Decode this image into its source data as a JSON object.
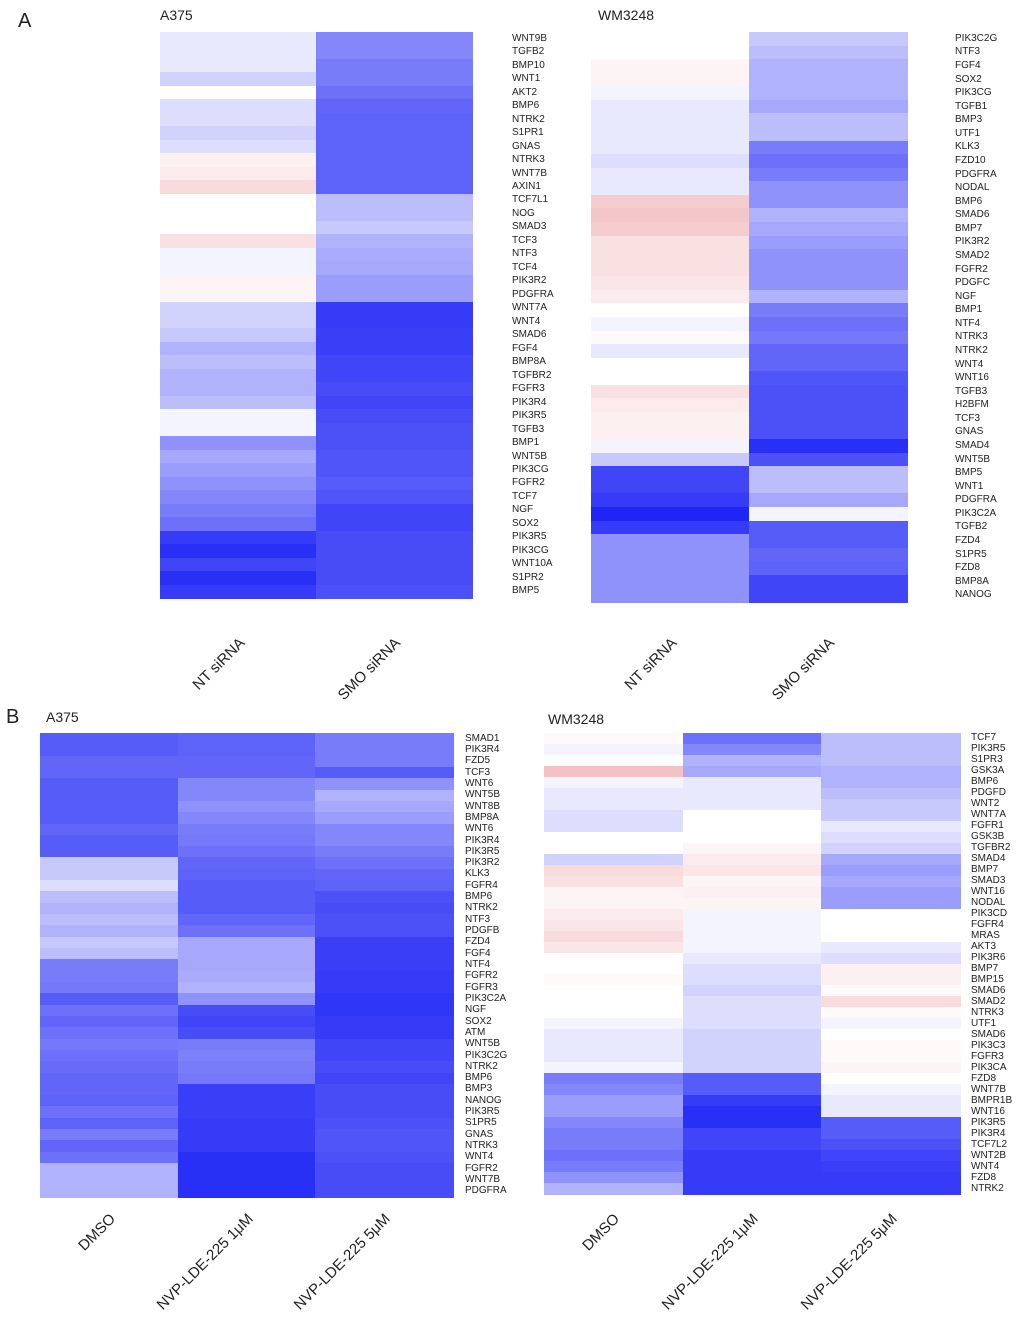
{
  "panels": [
    {
      "letter": "A"
    },
    {
      "letter": "B"
    }
  ],
  "colors": {
    "low": "#1e25f5",
    "mid": "#ffffff",
    "high": "#ea9a9e"
  },
  "chart_data": [
    {
      "type": "heatmap",
      "panel": "A",
      "title": "A375",
      "columns": [
        "NT siRNA",
        "SMO siRNA"
      ],
      "genes": [
        "WNT9B",
        "TGFB2",
        "BMP10",
        "WNT1",
        "AKT2",
        "BMP6",
        "NTRK2",
        "S1PR1",
        "GNAS",
        "NTRK3",
        "WNT7B",
        "AXIN1",
        "TCF7L1",
        "NOG",
        "SMAD3",
        "TCF3",
        "NTF3",
        "TCF4",
        "PIK3R2",
        "PDGFRA",
        "WNT7A",
        "WNT4",
        "SMAD6",
        "FGF4",
        "BMP8A",
        "TGFBR2",
        "FGFR3",
        "PIK3R4",
        "PIK3R5",
        "TGFB3",
        "BMP1",
        "WNT5B",
        "PIK3CG",
        "FGFR2",
        "TCF7",
        "NGF",
        "SOX2",
        "PIK3R5",
        "PIK3CG",
        "WNT10A",
        "S1PR2",
        "BMP5"
      ],
      "values": [
        [
          -0.1,
          -0.55
        ],
        [
          -0.1,
          -0.55
        ],
        [
          -0.1,
          -0.6
        ],
        [
          -0.2,
          -0.6
        ],
        [
          0,
          -0.65
        ],
        [
          -0.15,
          -0.7
        ],
        [
          -0.15,
          -0.72
        ],
        [
          -0.2,
          -0.72
        ],
        [
          -0.15,
          -0.72
        ],
        [
          0.15,
          -0.72
        ],
        [
          0.2,
          -0.72
        ],
        [
          0.35,
          -0.72
        ],
        [
          0,
          -0.3
        ],
        [
          0,
          -0.3
        ],
        [
          0,
          -0.25
        ],
        [
          0.3,
          -0.35
        ],
        [
          -0.05,
          -0.38
        ],
        [
          -0.05,
          -0.4
        ],
        [
          0.1,
          -0.45
        ],
        [
          0.1,
          -0.45
        ],
        [
          -0.2,
          -0.9
        ],
        [
          -0.2,
          -0.9
        ],
        [
          -0.25,
          -0.88
        ],
        [
          -0.35,
          -0.88
        ],
        [
          -0.3,
          -0.85
        ],
        [
          -0.35,
          -0.85
        ],
        [
          -0.35,
          -0.82
        ],
        [
          -0.3,
          -0.85
        ],
        [
          -0.05,
          -0.82
        ],
        [
          -0.05,
          -0.8
        ],
        [
          -0.5,
          -0.8
        ],
        [
          -0.4,
          -0.78
        ],
        [
          -0.45,
          -0.78
        ],
        [
          -0.5,
          -0.75
        ],
        [
          -0.55,
          -0.78
        ],
        [
          -0.6,
          -0.85
        ],
        [
          -0.65,
          -0.85
        ],
        [
          -0.9,
          -0.82
        ],
        [
          -0.95,
          -0.82
        ],
        [
          -0.85,
          -0.82
        ],
        [
          -0.95,
          -0.82
        ],
        [
          -0.9,
          -0.8
        ]
      ]
    },
    {
      "type": "heatmap",
      "panel": "A",
      "title": "WM3248",
      "columns": [
        "NT siRNA",
        "SMO siRNA"
      ],
      "genes": [
        "PIK3C2G",
        "NTF3",
        "FGF4",
        "SOX2",
        "PIK3CG",
        "TGFB1",
        "BMP3",
        "UTF1",
        "KLK3",
        "FZD10",
        "PDGFRA",
        "NODAL",
        "BMP6",
        "SMAD6",
        "BMP7",
        "PIK3R2",
        "SMAD2",
        "FGFR2",
        "PDGFC",
        "NGF",
        "BMP1",
        "NTF4",
        "NTRK3",
        "NTRK2",
        "WNT4",
        "WNT16",
        "TGFB3",
        "H2BFM",
        "TCF3",
        "GNAS",
        "SMAD4",
        "WNT5B",
        "BMP5",
        "WNT1",
        "PDGFRA",
        "PIK3C2A",
        "TGFB2",
        "FZD4",
        "S1PR5",
        "FZD8",
        "BMP8A",
        "NANOG"
      ],
      "values": [
        [
          0,
          -0.25
        ],
        [
          0,
          -0.3
        ],
        [
          0.1,
          -0.35
        ],
        [
          0.1,
          -0.35
        ],
        [
          -0.05,
          -0.35
        ],
        [
          -0.1,
          -0.4
        ],
        [
          -0.1,
          -0.3
        ],
        [
          -0.1,
          -0.3
        ],
        [
          -0.1,
          -0.6
        ],
        [
          -0.15,
          -0.65
        ],
        [
          -0.1,
          -0.6
        ],
        [
          -0.1,
          -0.5
        ],
        [
          0.5,
          -0.5
        ],
        [
          0.55,
          -0.35
        ],
        [
          0.5,
          -0.4
        ],
        [
          0.3,
          -0.45
        ],
        [
          0.3,
          -0.5
        ],
        [
          0.3,
          -0.5
        ],
        [
          0.25,
          -0.5
        ],
        [
          0.2,
          -0.35
        ],
        [
          0,
          -0.6
        ],
        [
          -0.05,
          -0.65
        ],
        [
          0.05,
          -0.62
        ],
        [
          -0.1,
          -0.7
        ],
        [
          0,
          -0.7
        ],
        [
          0,
          -0.78
        ],
        [
          0.3,
          -0.8
        ],
        [
          0.2,
          -0.8
        ],
        [
          0.15,
          -0.8
        ],
        [
          0.15,
          -0.8
        ],
        [
          -0.05,
          -0.95
        ],
        [
          -0.25,
          -0.8
        ],
        [
          -0.85,
          -0.3
        ],
        [
          -0.85,
          -0.3
        ],
        [
          -0.9,
          -0.4
        ],
        [
          -1,
          -0.05
        ],
        [
          -0.9,
          -0.75
        ],
        [
          -0.5,
          -0.75
        ],
        [
          -0.5,
          -0.7
        ],
        [
          -0.5,
          -0.72
        ],
        [
          -0.5,
          -0.85
        ],
        [
          -0.5,
          -0.85
        ]
      ]
    },
    {
      "type": "heatmap",
      "panel": "B",
      "title": "A375",
      "columns": [
        "DMSO",
        "NVP-LDE-225 1μM",
        "NVP-LDE-225 5μM"
      ],
      "genes": [
        "SMAD1",
        "PIK3R4",
        "FZD5",
        "TCF3",
        "WNT6",
        "WNT5B",
        "WNT8B",
        "BMP8A",
        "WNT6",
        "PIK3R4",
        "PIK3R5",
        "PIK3R2",
        "KLK3",
        "FGFR4",
        "BMP6",
        "NTRK2",
        "NTF3",
        "PDGFB",
        "FZD4",
        "FGF4",
        "NTF4",
        "FGFR2",
        "FGFR3",
        "PIK3C2A",
        "NGF",
        "SOX2",
        "ATM",
        "WNT5B",
        "PIK3C2G",
        "NTRK2",
        "BMP6",
        "BMP3",
        "NANOG",
        "PIK3R5",
        "S1PR5",
        "GNAS",
        "NTRK3",
        "WNT4",
        "FGFR2",
        "WNT7B",
        "PDGFRA"
      ],
      "values": [
        [
          -0.75,
          -0.72,
          -0.6
        ],
        [
          -0.75,
          -0.72,
          -0.6
        ],
        [
          -0.7,
          -0.7,
          -0.6
        ],
        [
          -0.7,
          -0.7,
          -0.75
        ],
        [
          -0.75,
          -0.55,
          -0.5
        ],
        [
          -0.75,
          -0.55,
          -0.35
        ],
        [
          -0.75,
          -0.5,
          -0.4
        ],
        [
          -0.75,
          -0.55,
          -0.45
        ],
        [
          -0.7,
          -0.6,
          -0.55
        ],
        [
          -0.75,
          -0.62,
          -0.55
        ],
        [
          -0.75,
          -0.65,
          -0.6
        ],
        [
          -0.25,
          -0.7,
          -0.65
        ],
        [
          -0.25,
          -0.72,
          -0.7
        ],
        [
          -0.15,
          -0.75,
          -0.72
        ],
        [
          -0.3,
          -0.75,
          -0.8
        ],
        [
          -0.35,
          -0.75,
          -0.82
        ],
        [
          -0.3,
          -0.7,
          -0.8
        ],
        [
          -0.35,
          -0.65,
          -0.8
        ],
        [
          -0.25,
          -0.4,
          -0.88
        ],
        [
          -0.3,
          -0.4,
          -0.88
        ],
        [
          -0.6,
          -0.4,
          -0.88
        ],
        [
          -0.6,
          -0.38,
          -0.9
        ],
        [
          -0.62,
          -0.35,
          -0.9
        ],
        [
          -0.75,
          -0.5,
          -0.92
        ],
        [
          -0.65,
          -0.82,
          -0.92
        ],
        [
          -0.7,
          -0.85,
          -0.9
        ],
        [
          -0.65,
          -0.82,
          -0.9
        ],
        [
          -0.62,
          -0.6,
          -0.85
        ],
        [
          -0.65,
          -0.58,
          -0.85
        ],
        [
          -0.68,
          -0.6,
          -0.82
        ],
        [
          -0.7,
          -0.62,
          -0.85
        ],
        [
          -0.7,
          -0.88,
          -0.82
        ],
        [
          -0.72,
          -0.88,
          -0.82
        ],
        [
          -0.65,
          -0.88,
          -0.82
        ],
        [
          -0.72,
          -0.9,
          -0.8
        ],
        [
          -0.6,
          -0.9,
          -0.78
        ],
        [
          -0.7,
          -0.9,
          -0.78
        ],
        [
          -0.65,
          -0.95,
          -0.8
        ],
        [
          -0.35,
          -0.95,
          -0.82
        ],
        [
          -0.35,
          -0.95,
          -0.82
        ],
        [
          -0.35,
          -0.95,
          -0.82
        ]
      ]
    },
    {
      "type": "heatmap",
      "panel": "B",
      "title": "WM3248",
      "columns": [
        "DMSO",
        "NVP-LDE-225 1μM",
        "NVP-LDE-225 5μM"
      ],
      "genes": [
        "TCF7",
        "PIK3R5",
        "S1PR3",
        "GSK3A",
        "BMP6",
        "PDGFD",
        "WNT2",
        "WNT7A",
        "FGFR1",
        "GSK3B",
        "TGFBR2",
        "SMAD4",
        "BMP7",
        "SMAD3",
        "WNT16",
        "NODAL",
        "PIK3CD",
        "FGFR4",
        "MRAS",
        "AKT3",
        "PIK3R6",
        "BMP7",
        "BMP15",
        "SMAD6",
        "SMAD2",
        "NTRK3",
        "UTF1",
        "SMAD6",
        "PIK3C3",
        "FGFR3",
        "PIK3CA",
        "FZD8",
        "WNT7B",
        "BMPR1B",
        "WNT16",
        "PIK3R5",
        "PIK3R4",
        "TCF7L2",
        "WNT2B",
        "WNT4",
        "FZD8",
        "NTRK2"
      ],
      "values": [
        [
          0.05,
          -0.65,
          -0.3
        ],
        [
          -0.05,
          -0.55,
          -0.3
        ],
        [
          0,
          -0.35,
          -0.3
        ],
        [
          0.6,
          -0.4,
          -0.35
        ],
        [
          -0.05,
          -0.1,
          -0.35
        ],
        [
          -0.1,
          -0.1,
          -0.3
        ],
        [
          -0.1,
          -0.1,
          -0.25
        ],
        [
          -0.15,
          0,
          -0.25
        ],
        [
          -0.15,
          0,
          -0.1
        ],
        [
          0,
          0,
          -0.15
        ],
        [
          0,
          0.1,
          -0.2
        ],
        [
          -0.2,
          0.2,
          -0.4
        ],
        [
          0.35,
          0.25,
          -0.45
        ],
        [
          0.3,
          0.1,
          -0.4
        ],
        [
          0.1,
          0.15,
          -0.45
        ],
        [
          0.1,
          0.1,
          -0.45
        ],
        [
          0.2,
          -0.05,
          0
        ],
        [
          0.25,
          -0.05,
          0
        ],
        [
          0.35,
          -0.05,
          0
        ],
        [
          0.25,
          -0.05,
          -0.1
        ],
        [
          0,
          -0.1,
          -0.15
        ],
        [
          0,
          -0.15,
          0.15
        ],
        [
          0.05,
          -0.15,
          0.15
        ],
        [
          0,
          -0.2,
          0.05
        ],
        [
          0,
          -0.15,
          0.35
        ],
        [
          0,
          -0.15,
          0.05
        ],
        [
          -0.05,
          -0.15,
          -0.05
        ],
        [
          -0.1,
          -0.2,
          0
        ],
        [
          -0.1,
          -0.2,
          0.05
        ],
        [
          -0.1,
          -0.2,
          0.05
        ],
        [
          -0.05,
          -0.2,
          0.1
        ],
        [
          -0.6,
          -0.75,
          0
        ],
        [
          -0.55,
          -0.75,
          -0.05
        ],
        [
          -0.45,
          -0.9,
          -0.1
        ],
        [
          -0.45,
          -0.95,
          -0.1
        ],
        [
          -0.55,
          -0.95,
          -0.75
        ],
        [
          -0.6,
          -0.85,
          -0.75
        ],
        [
          -0.6,
          -0.85,
          -0.8
        ],
        [
          -0.65,
          -0.9,
          -0.85
        ],
        [
          -0.6,
          -0.9,
          -0.88
        ],
        [
          -0.5,
          -0.9,
          -0.9
        ],
        [
          -0.35,
          -0.9,
          -0.9
        ]
      ]
    }
  ]
}
